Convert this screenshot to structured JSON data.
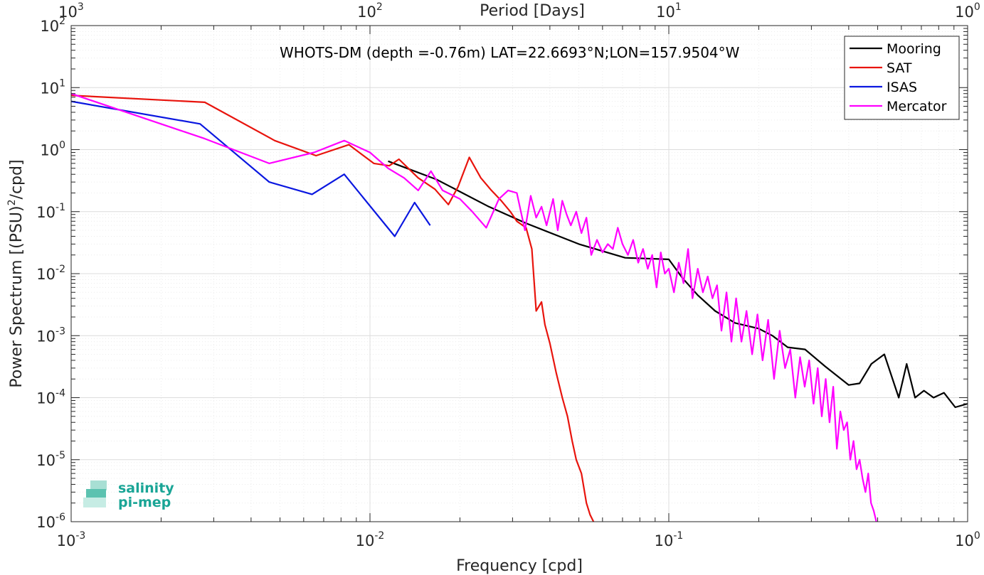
{
  "chart_data": {
    "type": "line",
    "annotation": "WHOTS-DM (depth =-0.76m) LAT=22.6693°N;LON=157.9504°W",
    "xlabel": "Frequency [cpd]",
    "ylabel": "Power Spectrum [(PSU)²/cpd]",
    "ylabel_parts": {
      "pre": "Power Spectrum [(PSU)",
      "sup": "2",
      "post": "/cpd]"
    },
    "top_xlabel": "Period [Days]",
    "xscale": "log",
    "yscale": "log",
    "xlim": [
      0.001,
      1
    ],
    "ylim": [
      1e-06,
      100
    ],
    "grid": true,
    "legend_position": "top-right",
    "x_ticks": [
      {
        "value": 0.001,
        "base": "10",
        "exp": "-3"
      },
      {
        "value": 0.01,
        "base": "10",
        "exp": "-2"
      },
      {
        "value": 0.1,
        "base": "10",
        "exp": "-1"
      },
      {
        "value": 1,
        "base": "10",
        "exp": "0"
      }
    ],
    "top_ticks": [
      {
        "value": 0.001,
        "base": "10",
        "exp": "3"
      },
      {
        "value": 0.01,
        "base": "10",
        "exp": "2"
      },
      {
        "value": 0.1,
        "base": "10",
        "exp": "1"
      },
      {
        "value": 1,
        "base": "10",
        "exp": "0"
      }
    ],
    "y_ticks": [
      {
        "value": 1e-06,
        "base": "10",
        "exp": "-6"
      },
      {
        "value": 1e-05,
        "base": "10",
        "exp": "-5"
      },
      {
        "value": 0.0001,
        "base": "10",
        "exp": "-4"
      },
      {
        "value": 0.001,
        "base": "10",
        "exp": "-3"
      },
      {
        "value": 0.01,
        "base": "10",
        "exp": "-2"
      },
      {
        "value": 0.1,
        "base": "10",
        "exp": "-1"
      },
      {
        "value": 1,
        "base": "10",
        "exp": "0"
      },
      {
        "value": 10,
        "base": "10",
        "exp": "1"
      },
      {
        "value": 100,
        "base": "10",
        "exp": "2"
      }
    ],
    "series": [
      {
        "name": "Mooring",
        "color": "#000000",
        "x": [
          0.0115,
          0.0133,
          0.0167,
          0.02,
          0.025,
          0.0333,
          0.05,
          0.0714,
          0.1,
          0.1111,
          0.125,
          0.1429,
          0.1667,
          0.2,
          0.2222,
          0.25,
          0.2857,
          0.3333,
          0.4,
          0.4348,
          0.4762,
          0.5263,
          0.5882,
          0.625,
          0.6667,
          0.7143,
          0.7692,
          0.8333,
          0.9091,
          1.0
        ],
        "y": [
          0.65,
          0.5,
          0.33,
          0.21,
          0.12,
          0.065,
          0.03,
          0.018,
          0.017,
          0.0085,
          0.0045,
          0.0025,
          0.0016,
          0.0013,
          0.001,
          0.00065,
          0.0006,
          0.00032,
          0.00016,
          0.00017,
          0.00035,
          0.0005,
          0.0001,
          0.00035,
          0.0001,
          0.00013,
          0.0001,
          0.00012,
          7e-05,
          8e-05
        ]
      },
      {
        "name": "SAT",
        "color": "#e8140d",
        "x": [
          0.001,
          0.0028,
          0.0048,
          0.0066,
          0.0085,
          0.0103,
          0.0116,
          0.0125,
          0.0145,
          0.0165,
          0.0183,
          0.0197,
          0.0215,
          0.0235,
          0.0255,
          0.0275,
          0.0295,
          0.031,
          0.0333,
          0.0348,
          0.036,
          0.0375,
          0.0385,
          0.04,
          0.042,
          0.044,
          0.0458,
          0.0475,
          0.049,
          0.051,
          0.053,
          0.0545,
          0.056,
          0.057
        ],
        "y": [
          7.5,
          5.8,
          1.4,
          0.8,
          1.2,
          0.6,
          0.55,
          0.7,
          0.35,
          0.23,
          0.13,
          0.25,
          0.75,
          0.35,
          0.22,
          0.15,
          0.1,
          0.07,
          0.055,
          0.025,
          0.0025,
          0.0035,
          0.0015,
          0.00075,
          0.00025,
          0.0001,
          5e-05,
          2e-05,
          1e-05,
          6e-06,
          2e-06,
          1.3e-06,
          1e-06,
          9e-07
        ]
      },
      {
        "name": "ISAS",
        "color": "#0a17e0",
        "x": [
          0.001,
          0.0027,
          0.0046,
          0.0064,
          0.0082,
          0.0121,
          0.0141,
          0.0159
        ],
        "y": [
          6.0,
          2.6,
          0.3,
          0.19,
          0.4,
          0.04,
          0.14,
          0.06
        ]
      },
      {
        "name": "Mercator",
        "color": "#ff00ff",
        "x": [
          0.001,
          0.0028,
          0.0046,
          0.0065,
          0.0082,
          0.01,
          0.0115,
          0.013,
          0.0145,
          0.016,
          0.0175,
          0.02,
          0.022,
          0.0245,
          0.027,
          0.029,
          0.031,
          0.033,
          0.0345,
          0.036,
          0.0375,
          0.039,
          0.041,
          0.0425,
          0.044,
          0.0455,
          0.047,
          0.049,
          0.051,
          0.053,
          0.055,
          0.0575,
          0.06,
          0.0625,
          0.065,
          0.0675,
          0.07,
          0.073,
          0.076,
          0.079,
          0.082,
          0.085,
          0.088,
          0.091,
          0.094,
          0.097,
          0.1,
          0.104,
          0.108,
          0.112,
          0.116,
          0.12,
          0.125,
          0.13,
          0.135,
          0.14,
          0.145,
          0.15,
          0.156,
          0.162,
          0.168,
          0.175,
          0.182,
          0.19,
          0.198,
          0.206,
          0.215,
          0.225,
          0.235,
          0.245,
          0.255,
          0.265,
          0.275,
          0.285,
          0.295,
          0.305,
          0.315,
          0.325,
          0.335,
          0.345,
          0.355,
          0.365,
          0.375,
          0.385,
          0.395,
          0.405,
          0.415,
          0.425,
          0.435,
          0.445,
          0.455,
          0.465,
          0.475,
          0.485,
          0.495
        ],
        "y": [
          8.0,
          1.5,
          0.6,
          0.9,
          1.4,
          0.9,
          0.5,
          0.35,
          0.22,
          0.45,
          0.22,
          0.16,
          0.1,
          0.055,
          0.16,
          0.22,
          0.2,
          0.05,
          0.18,
          0.08,
          0.12,
          0.06,
          0.16,
          0.05,
          0.15,
          0.09,
          0.06,
          0.1,
          0.045,
          0.08,
          0.02,
          0.035,
          0.022,
          0.03,
          0.025,
          0.055,
          0.03,
          0.02,
          0.035,
          0.015,
          0.025,
          0.012,
          0.02,
          0.006,
          0.022,
          0.01,
          0.012,
          0.005,
          0.015,
          0.007,
          0.025,
          0.004,
          0.012,
          0.005,
          0.009,
          0.004,
          0.0065,
          0.0012,
          0.005,
          0.0008,
          0.004,
          0.0008,
          0.0025,
          0.0005,
          0.0022,
          0.0004,
          0.0018,
          0.0002,
          0.0012,
          0.0003,
          0.0006,
          0.0001,
          0.00045,
          0.00015,
          0.0004,
          8e-05,
          0.0003,
          5e-05,
          0.0002,
          4e-05,
          0.00015,
          1.5e-05,
          6e-05,
          3e-05,
          4e-05,
          1e-05,
          2e-05,
          7e-06,
          1e-05,
          5e-06,
          3e-06,
          6e-06,
          2e-06,
          1.5e-06,
          1e-06
        ]
      }
    ]
  },
  "logo": {
    "line1": "salinity",
    "line2": "pi-mep"
  }
}
